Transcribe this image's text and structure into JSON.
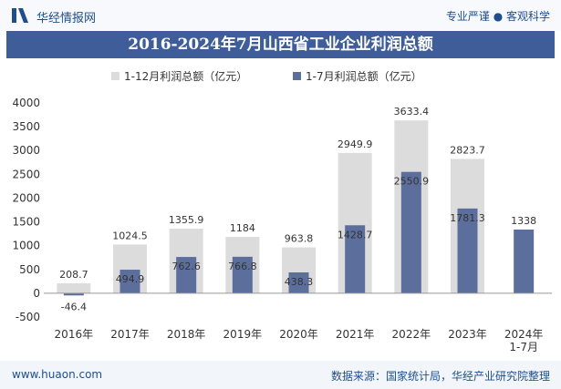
{
  "header": {
    "brand": "华经情报网",
    "tagline": "专业严谨 ● 客观科学"
  },
  "footer": {
    "website": "www.huaon.com",
    "source": "数据来源：国家统计局，华经产业研究院整理"
  },
  "colors": {
    "series_full_year": "#dcdcdc",
    "series_jan_jul": "#5b6e9c",
    "title_bg": "#3f5e99",
    "brand": "#1f4e8c"
  },
  "chart_data": {
    "type": "bar",
    "title": "2016-2024年7月山西省工业企业利润总额",
    "categories": [
      "2016年",
      "2017年",
      "2018年",
      "2019年",
      "2020年",
      "2021年",
      "2022年",
      "2023年",
      "2024年\n1-7月"
    ],
    "series": [
      {
        "name": "1-12月利润总额（亿元）",
        "values": [
          208.7,
          1024.5,
          1355.9,
          1184,
          963.8,
          2949.9,
          3633.4,
          2823.7,
          null
        ]
      },
      {
        "name": "1-7月利润总额（亿元）",
        "values": [
          -46.4,
          494.9,
          762.6,
          766.8,
          438.3,
          1428.7,
          2550.9,
          1781.3,
          1338
        ]
      }
    ],
    "ylim": [
      -500,
      4000
    ],
    "yticks": [
      -500,
      0,
      500,
      1000,
      1500,
      2000,
      2500,
      3000,
      3500,
      4000
    ],
    "grid": false,
    "legend": "top-center"
  }
}
